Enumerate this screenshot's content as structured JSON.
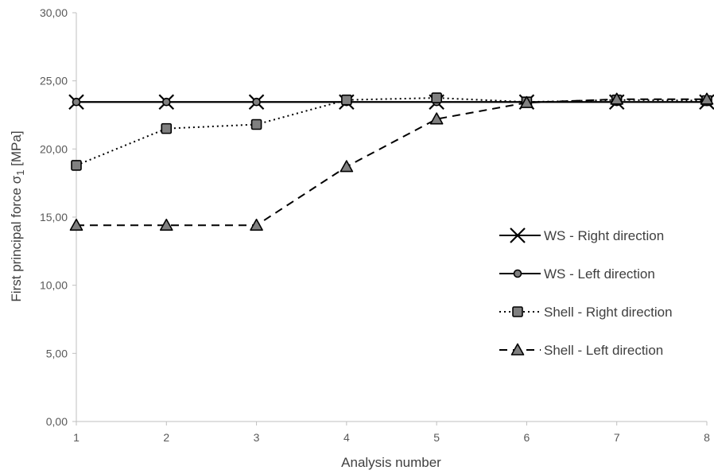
{
  "chart_data": {
    "type": "line",
    "xlabel": "Analysis number",
    "ylabel": "First principal force σ",
    "ylabel_subscript": "1",
    "ylabel_unit": " [MPa]",
    "x": [
      1,
      2,
      3,
      4,
      5,
      6,
      7,
      8
    ],
    "x_tick_labels": [
      "1",
      "2",
      "3",
      "4",
      "5",
      "6",
      "7",
      "8"
    ],
    "ylim": [
      0,
      30
    ],
    "y_ticks": [
      0,
      5,
      10,
      15,
      20,
      25,
      30
    ],
    "y_tick_labels": [
      "0,00",
      "5,00",
      "10,00",
      "15,00",
      "20,00",
      "25,00",
      "30,00"
    ],
    "grid": false,
    "legend_position": "right",
    "series": [
      {
        "name": "WS - Right direction",
        "values": [
          23.45,
          23.45,
          23.45,
          23.45,
          23.45,
          23.45,
          23.45,
          23.45
        ],
        "line_style": "solid",
        "marker": "x"
      },
      {
        "name": "WS - Left direction",
        "values": [
          23.45,
          23.45,
          23.45,
          23.45,
          23.45,
          23.45,
          23.45,
          23.45
        ],
        "line_style": "solid",
        "marker": "circle"
      },
      {
        "name": "Shell - Right direction",
        "values": [
          18.8,
          21.5,
          21.8,
          23.6,
          23.75,
          23.45,
          23.6,
          23.55
        ],
        "line_style": "dotted",
        "marker": "square"
      },
      {
        "name": "Shell - Left direction",
        "values": [
          14.4,
          14.4,
          14.4,
          18.7,
          22.2,
          23.4,
          23.65,
          23.65
        ],
        "line_style": "dashed",
        "marker": "triangle"
      }
    ],
    "colors": {
      "line": "#000000",
      "marker_fill": "#808080",
      "axis": "#bfbfbf"
    }
  }
}
